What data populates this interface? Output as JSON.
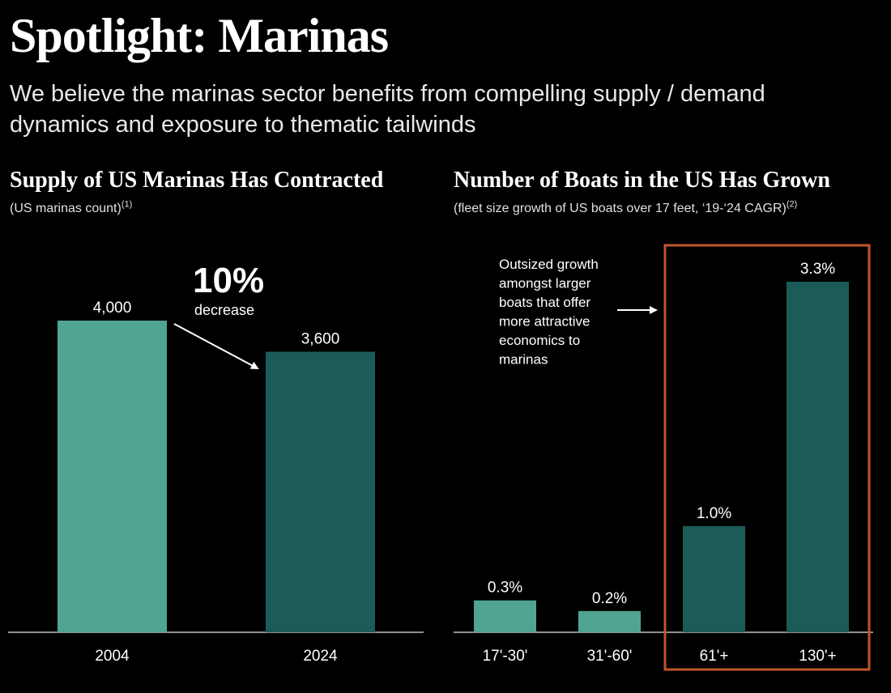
{
  "page": {
    "title": "Spotlight: Marinas",
    "subtitle": "We believe the marinas sector benefits from compelling supply / demand dynamics and exposure to thematic tailwinds"
  },
  "left_chart": {
    "title": "Supply of US Marinas Has Contracted",
    "subtitle": "(US marinas count)",
    "footnote": "(1)",
    "callout_value": "10%",
    "callout_label": "decrease"
  },
  "right_chart": {
    "title": "Number of Boats in the US Has Grown",
    "subtitle": "(fleet size growth of US boats over 17 feet, ‘19-‘24 CAGR)",
    "footnote": "(2)",
    "annotation_lines": [
      "Outsized growth",
      "amongst larger",
      "boats that offer",
      "more attractive",
      "economics to",
      "marinas"
    ]
  },
  "colors": {
    "background": "#000000",
    "light_teal": "#4fa58f",
    "dark_teal": "#1b5c58",
    "highlight_box": "#c0562d",
    "text": "#ffffff"
  },
  "chart_data": [
    {
      "type": "bar",
      "title": "Supply of US Marinas Has Contracted",
      "categories": [
        "2004",
        "2024"
      ],
      "values": [
        4000,
        3600
      ],
      "value_labels": [
        "4,000",
        "3,600"
      ],
      "ylim": [
        0,
        4000
      ],
      "grid": false,
      "unit": "count"
    },
    {
      "type": "bar",
      "title": "Number of Boats in the US Has Grown",
      "categories": [
        "17'-30'",
        "31'-60'",
        "61'+",
        "130'+"
      ],
      "values": [
        0.3,
        0.2,
        1.0,
        3.3
      ],
      "value_labels": [
        "0.3%",
        "0.2%",
        "1.0%",
        "3.3%"
      ],
      "ylim": [
        0,
        3.3
      ],
      "grid": false,
      "unit": "%"
    }
  ]
}
